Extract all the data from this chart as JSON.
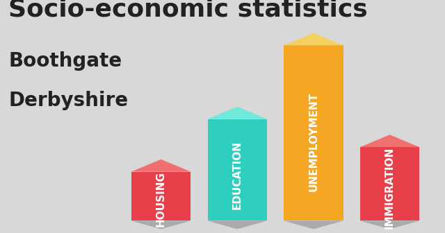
{
  "title": "Socio-economic statistics",
  "subtitle1": "Boothgate",
  "subtitle2": "Derbyshire",
  "categories": [
    "HOUSING",
    "EDUCATION",
    "UNEMPLOYMENT",
    "IMMIGRATION"
  ],
  "values": [
    0.28,
    0.58,
    1.0,
    0.42
  ],
  "bar_colors": [
    "#E8404A",
    "#2ECFBE",
    "#F5A623",
    "#E8404A"
  ],
  "bar_top_colors": [
    "#F07070",
    "#70E8DC",
    "#F5D060",
    "#F07070"
  ],
  "background_color": "#D8D8D8",
  "title_color": "#222222",
  "label_color": "#FFFFFF",
  "title_fontsize": 26,
  "subtitle_fontsize": 20,
  "label_fontsize": 11
}
